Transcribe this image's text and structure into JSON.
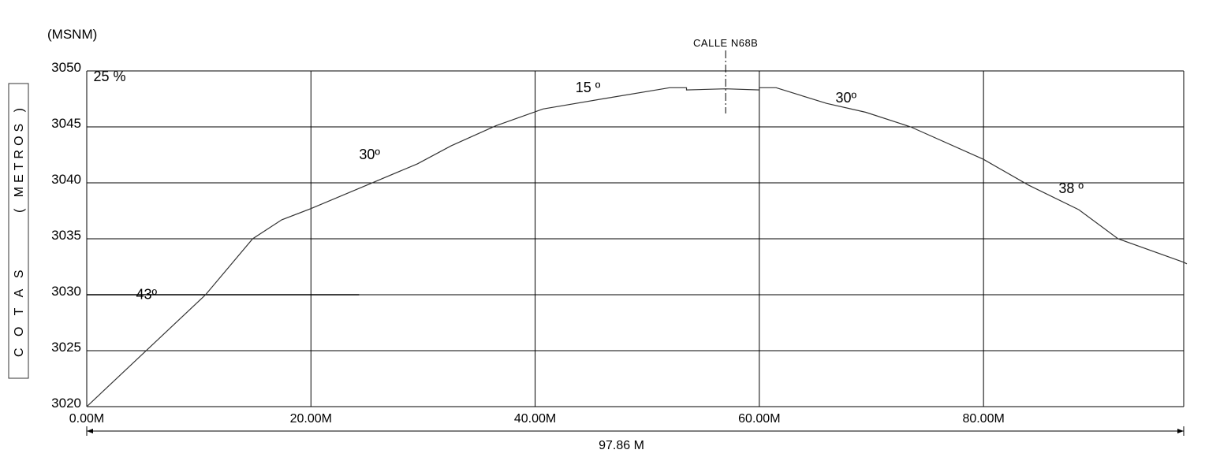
{
  "chart_data": {
    "type": "line",
    "title": "",
    "ylabel_unit": "(MSNM)",
    "ylabel_left": "C O T A S",
    "ylabel_right": "( METROS )",
    "xlim": [
      0,
      97.86
    ],
    "ylim": [
      3020,
      3050
    ],
    "grid": true,
    "x_ticks": [
      0,
      20,
      40,
      60,
      80
    ],
    "x_tick_labels": [
      "0.00M",
      "20.00M",
      "40.00M",
      "60.00M",
      "80.00M"
    ],
    "y_ticks": [
      3020,
      3025,
      3030,
      3035,
      3040,
      3045,
      3050
    ],
    "y_tick_labels": [
      "3020",
      "3025",
      "3030",
      "3035",
      "3040",
      "3045",
      "3050"
    ],
    "series": [
      {
        "x": [
          0,
          10.6,
          14.8,
          17.4,
          20,
          25,
          29.5,
          32.5,
          36.5,
          40.7,
          46,
          52,
          53.5,
          53.5,
          57,
          60,
          60,
          61.5,
          66,
          69.5,
          73.5,
          80,
          84,
          88.5,
          92,
          97.86
        ],
        "y": [
          3020,
          3030,
          3035,
          3036.7,
          3037.7,
          3039.8,
          3041.7,
          3043.3,
          3045.1,
          3046.6,
          3047.5,
          3048.5,
          3048.5,
          3048.3,
          3048.4,
          3048.3,
          3048.5,
          3048.5,
          3047.1,
          3046.3,
          3045,
          3042.1,
          3039.8,
          3037.6,
          3035,
          3032.9
        ]
      }
    ],
    "reference_segment": {
      "x": [
        0,
        24.3
      ],
      "y": 3030
    },
    "street_marker": {
      "x": 57,
      "label": "CALLE N68B"
    },
    "total_length_label": "97.86 M",
    "annotations": [
      {
        "text": "25 %",
        "x": 0.6,
        "y": 3049.1
      },
      {
        "text": "43º",
        "x": 4.4,
        "y": 3029.6
      },
      {
        "text": "30º",
        "x": 24.3,
        "y": 3042.1
      },
      {
        "text": "15 º",
        "x": 43.6,
        "y": 3048.1
      },
      {
        "text": "30º",
        "x": 66.8,
        "y": 3047.2
      },
      {
        "text": "38 º",
        "x": 86.7,
        "y": 3039.1
      }
    ]
  }
}
